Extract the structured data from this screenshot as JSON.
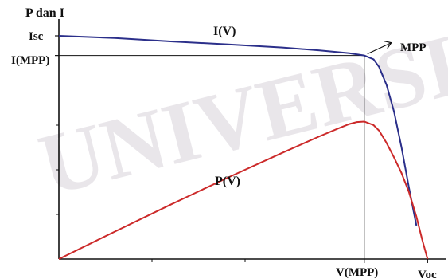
{
  "chart_data": {
    "type": "line",
    "title": "",
    "ylabel": "P dan I",
    "xlabel": "",
    "grid": false,
    "xlim": [
      0,
      1.0
    ],
    "ylim": [
      0,
      1.0
    ],
    "y_tick_labels": {
      "isc": "Isc",
      "impp": "I(MPP)"
    },
    "x_tick_labels": {
      "vmpp": "V(MPP)",
      "voc": "Voc"
    },
    "annotations": {
      "mpp": "MPP"
    },
    "series": [
      {
        "name": "I(V)",
        "color": "#2b2f8a",
        "x": [
          0.0,
          0.15,
          0.3,
          0.45,
          0.6,
          0.7,
          0.78,
          0.82,
          0.845,
          0.86,
          0.88,
          0.9,
          0.92,
          0.94,
          0.96
        ],
        "y": [
          1.0,
          0.99,
          0.975,
          0.962,
          0.948,
          0.935,
          0.922,
          0.912,
          0.895,
          0.86,
          0.78,
          0.66,
          0.5,
          0.32,
          0.15
        ]
      },
      {
        "name": "P(V)",
        "color": "#cc2a2a",
        "x": [
          0.0,
          0.15,
          0.3,
          0.45,
          0.6,
          0.7,
          0.75,
          0.78,
          0.8,
          0.82,
          0.845,
          0.86,
          0.88,
          0.9,
          0.92,
          0.94,
          0.96,
          0.975,
          0.99
        ],
        "y": [
          0.0,
          0.123,
          0.244,
          0.362,
          0.476,
          0.55,
          0.585,
          0.605,
          0.614,
          0.616,
          0.6,
          0.575,
          0.52,
          0.455,
          0.385,
          0.3,
          0.19,
          0.09,
          0.0
        ]
      }
    ],
    "mpp": {
      "x": 0.82,
      "y_current": 0.912,
      "y_power": 0.616
    },
    "colors": {
      "axis": "#111111",
      "watermark": "#e9e6ea"
    },
    "watermark": "UNIVERSITAS"
  }
}
